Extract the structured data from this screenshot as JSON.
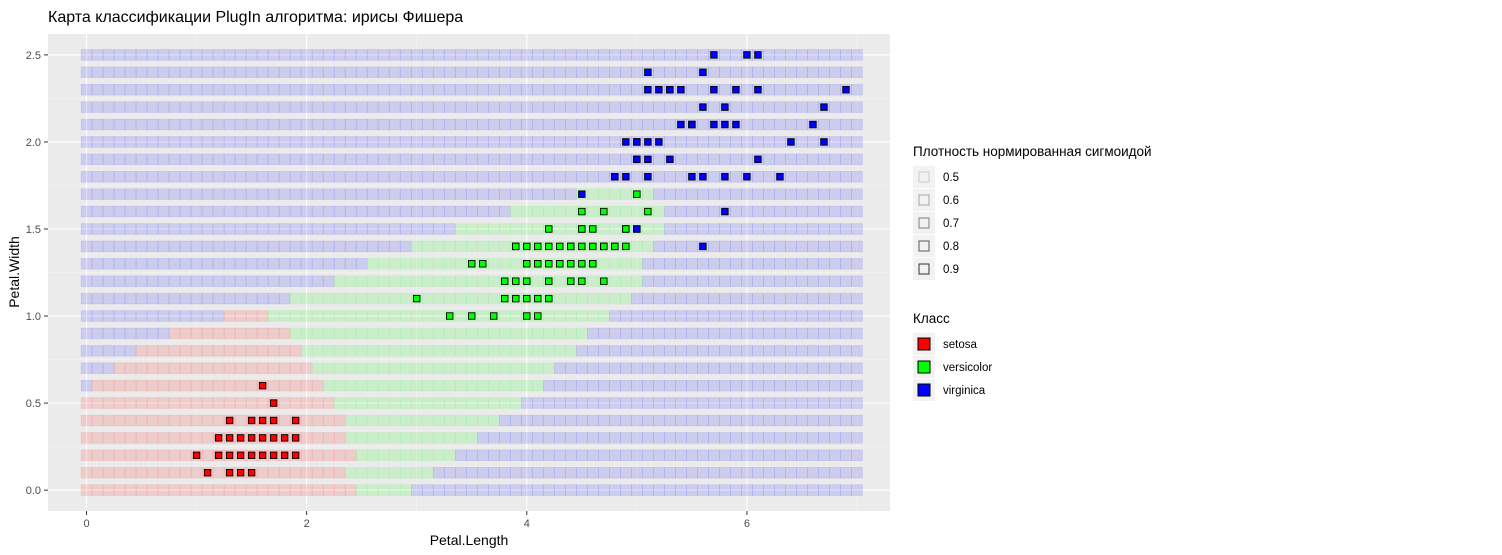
{
  "chart_data": {
    "type": "scatter",
    "title": "Карта классификации PlugIn алгоритма: ирисы Фишера",
    "xlabel": "Petal.Length",
    "ylabel": "Petal.Width",
    "xlim": [
      -0.35,
      7.3
    ],
    "ylim": [
      -0.12,
      2.62
    ],
    "x_ticks": [
      0,
      2,
      4,
      6
    ],
    "x_tick_labels": [
      "0",
      "2",
      "4",
      "6"
    ],
    "y_ticks": [
      0.0,
      0.5,
      1.0,
      1.5,
      2.0,
      2.5
    ],
    "y_tick_labels": [
      "0.0",
      "0.5",
      "1.0",
      "1.5",
      "2.0",
      "2.5"
    ],
    "grid": true,
    "legend_position": "right",
    "classes": [
      {
        "name": "setosa",
        "color": "#ff0000"
      },
      {
        "name": "versicolor",
        "color": "#00ff00"
      },
      {
        "name": "virginica",
        "color": "#0000ff"
      }
    ],
    "density_legend": {
      "title": "Плотность нормированная сигмоидой",
      "levels": [
        "0.5",
        "0.6",
        "0.7",
        "0.8",
        "0.9"
      ]
    },
    "class_legend_title": "Класс",
    "map_grid": {
      "x_start": 0,
      "x_end": 7,
      "x_step": 0.1,
      "y_start": 0,
      "y_end": 2.5,
      "y_step": 0.1,
      "background_class": "virginica",
      "regions": [
        {
          "y": 0.0,
          "setosa": [
            0.0,
            2.45
          ],
          "versicolor": [
            2.45,
            2.95
          ]
        },
        {
          "y": 0.1,
          "setosa": [
            0.0,
            2.35
          ],
          "versicolor": [
            2.35,
            3.15
          ]
        },
        {
          "y": 0.2,
          "setosa": [
            0.0,
            2.45
          ],
          "versicolor": [
            2.45,
            3.35
          ]
        },
        {
          "y": 0.3,
          "setosa": [
            0.0,
            2.35
          ],
          "versicolor": [
            2.35,
            3.55
          ]
        },
        {
          "y": 0.4,
          "setosa": [
            0.0,
            2.35
          ],
          "versicolor": [
            2.35,
            3.75
          ]
        },
        {
          "y": 0.5,
          "setosa": [
            0.0,
            2.25
          ],
          "versicolor": [
            2.25,
            3.95
          ]
        },
        {
          "y": 0.6,
          "setosa": [
            0.05,
            2.15
          ],
          "versicolor": [
            2.15,
            4.15
          ]
        },
        {
          "y": 0.7,
          "setosa": [
            0.25,
            2.05
          ],
          "versicolor": [
            2.05,
            4.25
          ]
        },
        {
          "y": 0.8,
          "setosa": [
            0.45,
            1.95
          ],
          "versicolor": [
            1.95,
            4.45
          ]
        },
        {
          "y": 0.9,
          "setosa": [
            0.75,
            1.85
          ],
          "versicolor": [
            1.85,
            4.55
          ]
        },
        {
          "y": 1.0,
          "setosa": [
            1.25,
            1.65
          ],
          "versicolor": [
            1.65,
            4.75
          ]
        },
        {
          "y": 1.1,
          "versicolor": [
            1.85,
            4.95
          ]
        },
        {
          "y": 1.2,
          "versicolor": [
            2.25,
            5.05
          ]
        },
        {
          "y": 1.3,
          "versicolor": [
            2.55,
            5.05
          ]
        },
        {
          "y": 1.4,
          "versicolor": [
            2.95,
            5.15
          ]
        },
        {
          "y": 1.5,
          "versicolor": [
            3.35,
            5.25
          ]
        },
        {
          "y": 1.6,
          "versicolor": [
            3.85,
            5.25
          ]
        },
        {
          "y": 1.7,
          "versicolor": [
            4.45,
            5.15
          ]
        }
      ]
    },
    "points": [
      {
        "class": "setosa",
        "x": 1.4,
        "y": 0.2
      },
      {
        "class": "setosa",
        "x": 1.3,
        "y": 0.2
      },
      {
        "class": "setosa",
        "x": 1.5,
        "y": 0.2
      },
      {
        "class": "setosa",
        "x": 1.7,
        "y": 0.4
      },
      {
        "class": "setosa",
        "x": 1.4,
        "y": 0.3
      },
      {
        "class": "setosa",
        "x": 1.5,
        "y": 0.1
      },
      {
        "class": "setosa",
        "x": 1.6,
        "y": 0.2
      },
      {
        "class": "setosa",
        "x": 1.1,
        "y": 0.1
      },
      {
        "class": "setosa",
        "x": 1.2,
        "y": 0.2
      },
      {
        "class": "setosa",
        "x": 1.3,
        "y": 0.4
      },
      {
        "class": "setosa",
        "x": 1.0,
        "y": 0.2
      },
      {
        "class": "setosa",
        "x": 1.7,
        "y": 0.5
      },
      {
        "class": "setosa",
        "x": 1.9,
        "y": 0.2
      },
      {
        "class": "setosa",
        "x": 1.6,
        "y": 0.4
      },
      {
        "class": "setosa",
        "x": 1.5,
        "y": 0.4
      },
      {
        "class": "setosa",
        "x": 1.4,
        "y": 0.1
      },
      {
        "class": "setosa",
        "x": 1.6,
        "y": 0.6
      },
      {
        "class": "setosa",
        "x": 1.9,
        "y": 0.4
      },
      {
        "class": "setosa",
        "x": 1.6,
        "y": 0.3
      },
      {
        "class": "setosa",
        "x": 1.7,
        "y": 0.3
      },
      {
        "class": "setosa",
        "x": 1.5,
        "y": 0.3
      },
      {
        "class": "setosa",
        "x": 1.3,
        "y": 0.3
      },
      {
        "class": "setosa",
        "x": 1.2,
        "y": 0.3
      },
      {
        "class": "setosa",
        "x": 1.7,
        "y": 0.2
      },
      {
        "class": "setosa",
        "x": 1.8,
        "y": 0.3
      },
      {
        "class": "setosa",
        "x": 1.3,
        "y": 0.1
      },
      {
        "class": "setosa",
        "x": 1.8,
        "y": 0.2
      },
      {
        "class": "setosa",
        "x": 1.9,
        "y": 0.3
      },
      {
        "class": "versicolor",
        "x": 4.7,
        "y": 1.4
      },
      {
        "class": "versicolor",
        "x": 4.5,
        "y": 1.5
      },
      {
        "class": "versicolor",
        "x": 4.9,
        "y": 1.5
      },
      {
        "class": "versicolor",
        "x": 4.0,
        "y": 1.3
      },
      {
        "class": "versicolor",
        "x": 4.6,
        "y": 1.5
      },
      {
        "class": "versicolor",
        "x": 4.5,
        "y": 1.3
      },
      {
        "class": "versicolor",
        "x": 4.7,
        "y": 1.6
      },
      {
        "class": "versicolor",
        "x": 3.3,
        "y": 1.0
      },
      {
        "class": "versicolor",
        "x": 4.6,
        "y": 1.3
      },
      {
        "class": "versicolor",
        "x": 3.9,
        "y": 1.4
      },
      {
        "class": "versicolor",
        "x": 3.5,
        "y": 1.0
      },
      {
        "class": "versicolor",
        "x": 4.2,
        "y": 1.5
      },
      {
        "class": "versicolor",
        "x": 4.0,
        "y": 1.0
      },
      {
        "class": "versicolor",
        "x": 4.7,
        "y": 1.4
      },
      {
        "class": "versicolor",
        "x": 3.6,
        "y": 1.3
      },
      {
        "class": "versicolor",
        "x": 4.4,
        "y": 1.4
      },
      {
        "class": "versicolor",
        "x": 4.1,
        "y": 1.0
      },
      {
        "class": "versicolor",
        "x": 3.9,
        "y": 1.1
      },
      {
        "class": "versicolor",
        "x": 4.8,
        "y": 1.8
      },
      {
        "class": "versicolor",
        "x": 4.0,
        "y": 1.3
      },
      {
        "class": "versicolor",
        "x": 4.9,
        "y": 1.5
      },
      {
        "class": "versicolor",
        "x": 4.7,
        "y": 1.2
      },
      {
        "class": "versicolor",
        "x": 4.3,
        "y": 1.3
      },
      {
        "class": "versicolor",
        "x": 4.4,
        "y": 1.4
      },
      {
        "class": "versicolor",
        "x": 4.8,
        "y": 1.4
      },
      {
        "class": "versicolor",
        "x": 5.0,
        "y": 1.7
      },
      {
        "class": "versicolor",
        "x": 4.5,
        "y": 1.5
      },
      {
        "class": "versicolor",
        "x": 3.8,
        "y": 1.1
      },
      {
        "class": "versicolor",
        "x": 3.7,
        "y": 1.0
      },
      {
        "class": "versicolor",
        "x": 3.9,
        "y": 1.2
      },
      {
        "class": "versicolor",
        "x": 5.1,
        "y": 1.6
      },
      {
        "class": "versicolor",
        "x": 4.5,
        "y": 1.6
      },
      {
        "class": "versicolor",
        "x": 4.4,
        "y": 1.3
      },
      {
        "class": "versicolor",
        "x": 4.1,
        "y": 1.3
      },
      {
        "class": "versicolor",
        "x": 4.2,
        "y": 1.2
      },
      {
        "class": "versicolor",
        "x": 4.6,
        "y": 1.4
      },
      {
        "class": "versicolor",
        "x": 3.0,
        "y": 1.1
      },
      {
        "class": "versicolor",
        "x": 4.1,
        "y": 1.3
      },
      {
        "class": "versicolor",
        "x": 4.2,
        "y": 1.3
      },
      {
        "class": "versicolor",
        "x": 4.3,
        "y": 1.3
      },
      {
        "class": "versicolor",
        "x": 4.0,
        "y": 1.2
      },
      {
        "class": "versicolor",
        "x": 4.4,
        "y": 1.2
      },
      {
        "class": "versicolor",
        "x": 4.6,
        "y": 1.3
      },
      {
        "class": "versicolor",
        "x": 4.8,
        "y": 1.4
      },
      {
        "class": "versicolor",
        "x": 4.9,
        "y": 1.4
      },
      {
        "class": "versicolor",
        "x": 3.9,
        "y": 1.4
      },
      {
        "class": "versicolor",
        "x": 4.2,
        "y": 1.1
      },
      {
        "class": "versicolor",
        "x": 4.3,
        "y": 1.4
      },
      {
        "class": "versicolor",
        "x": 4.5,
        "y": 1.4
      },
      {
        "class": "versicolor",
        "x": 4.1,
        "y": 1.4
      },
      {
        "class": "versicolor",
        "x": 4.0,
        "y": 1.4
      },
      {
        "class": "versicolor",
        "x": 4.2,
        "y": 1.4
      },
      {
        "class": "versicolor",
        "x": 4.5,
        "y": 1.2
      },
      {
        "class": "versicolor",
        "x": 4.0,
        "y": 1.1
      },
      {
        "class": "versicolor",
        "x": 3.8,
        "y": 1.2
      },
      {
        "class": "versicolor",
        "x": 3.5,
        "y": 1.3
      },
      {
        "class": "versicolor",
        "x": 5.0,
        "y": 1.5
      },
      {
        "class": "versicolor",
        "x": 4.1,
        "y": 1.1
      },
      {
        "class": "virginica",
        "x": 6.0,
        "y": 2.5
      },
      {
        "class": "virginica",
        "x": 5.1,
        "y": 1.9
      },
      {
        "class": "virginica",
        "x": 5.9,
        "y": 2.1
      },
      {
        "class": "virginica",
        "x": 5.6,
        "y": 1.8
      },
      {
        "class": "virginica",
        "x": 5.8,
        "y": 2.2
      },
      {
        "class": "virginica",
        "x": 6.6,
        "y": 2.1
      },
      {
        "class": "virginica",
        "x": 4.5,
        "y": 1.7
      },
      {
        "class": "virginica",
        "x": 6.3,
        "y": 1.8
      },
      {
        "class": "virginica",
        "x": 6.1,
        "y": 2.5
      },
      {
        "class": "virginica",
        "x": 5.3,
        "y": 1.9
      },
      {
        "class": "virginica",
        "x": 5.5,
        "y": 2.1
      },
      {
        "class": "virginica",
        "x": 5.0,
        "y": 2.0
      },
      {
        "class": "virginica",
        "x": 5.1,
        "y": 2.4
      },
      {
        "class": "virginica",
        "x": 5.3,
        "y": 2.3
      },
      {
        "class": "virginica",
        "x": 6.7,
        "y": 2.2
      },
      {
        "class": "virginica",
        "x": 6.9,
        "y": 2.3
      },
      {
        "class": "virginica",
        "x": 5.0,
        "y": 1.5
      },
      {
        "class": "virginica",
        "x": 5.7,
        "y": 2.3
      },
      {
        "class": "virginica",
        "x": 4.9,
        "y": 2.0
      },
      {
        "class": "virginica",
        "x": 6.7,
        "y": 2.0
      },
      {
        "class": "virginica",
        "x": 5.4,
        "y": 2.1
      },
      {
        "class": "virginica",
        "x": 5.6,
        "y": 2.2
      },
      {
        "class": "virginica",
        "x": 5.8,
        "y": 1.6
      },
      {
        "class": "virginica",
        "x": 6.1,
        "y": 1.9
      },
      {
        "class": "virginica",
        "x": 6.4,
        "y": 2.0
      },
      {
        "class": "virginica",
        "x": 5.6,
        "y": 1.4
      },
      {
        "class": "virginica",
        "x": 6.1,
        "y": 2.3
      },
      {
        "class": "virginica",
        "x": 5.5,
        "y": 1.8
      },
      {
        "class": "virginica",
        "x": 4.8,
        "y": 1.8
      },
      {
        "class": "virginica",
        "x": 5.4,
        "y": 2.3
      },
      {
        "class": "virginica",
        "x": 5.2,
        "y": 2.0
      },
      {
        "class": "virginica",
        "x": 5.7,
        "y": 2.5
      },
      {
        "class": "virginica",
        "x": 5.1,
        "y": 2.3
      },
      {
        "class": "virginica",
        "x": 5.9,
        "y": 2.3
      },
      {
        "class": "virginica",
        "x": 5.7,
        "y": 2.1
      },
      {
        "class": "virginica",
        "x": 5.2,
        "y": 2.3
      },
      {
        "class": "virginica",
        "x": 5.0,
        "y": 1.9
      },
      {
        "class": "virginica",
        "x": 5.1,
        "y": 2.0
      },
      {
        "class": "virginica",
        "x": 5.8,
        "y": 1.8
      },
      {
        "class": "virginica",
        "x": 5.6,
        "y": 2.4
      },
      {
        "class": "virginica",
        "x": 5.1,
        "y": 1.8
      },
      {
        "class": "virginica",
        "x": 4.9,
        "y": 1.8
      },
      {
        "class": "virginica",
        "x": 5.5,
        "y": 2.1
      },
      {
        "class": "virginica",
        "x": 5.8,
        "y": 2.1
      },
      {
        "class": "virginica",
        "x": 5.0,
        "y": 1.9
      },
      {
        "class": "virginica",
        "x": 6.0,
        "y": 1.8
      },
      {
        "class": "virginica",
        "x": 5.3,
        "y": 2.3
      },
      {
        "class": "virginica",
        "x": 5.0,
        "y": 2.0
      }
    ]
  }
}
